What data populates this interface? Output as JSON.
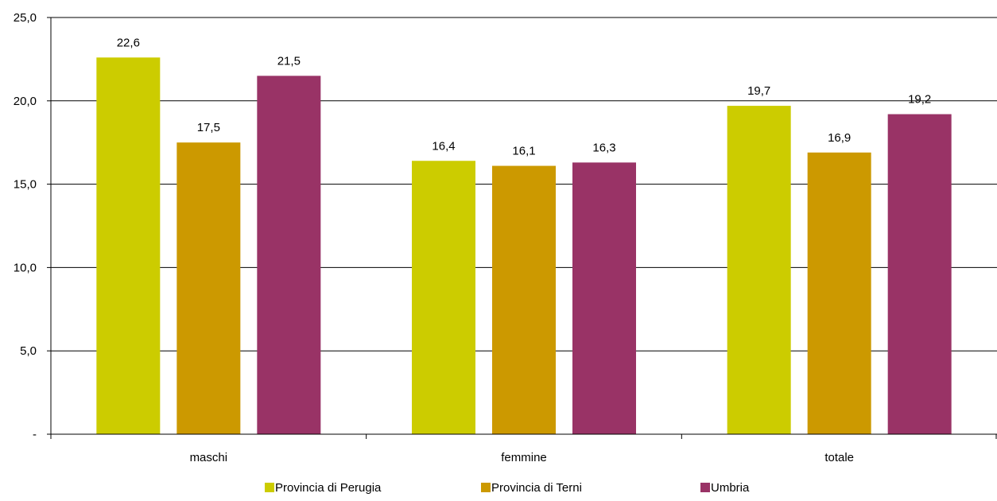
{
  "chart_data": {
    "type": "bar",
    "categories": [
      "maschi",
      "femmine",
      "totale"
    ],
    "series": [
      {
        "name": "Provincia di Perugia",
        "color": "#cccc00",
        "values": [
          22.6,
          16.4,
          19.7
        ],
        "labels": [
          "22,6",
          "16,4",
          "19,7"
        ]
      },
      {
        "name": "Provincia di Terni",
        "color": "#cc9900",
        "values": [
          17.5,
          16.1,
          16.9
        ],
        "labels": [
          "17,5",
          "16,1",
          "16,9"
        ]
      },
      {
        "name": "Umbria",
        "color": "#993366",
        "values": [
          21.5,
          16.3,
          19.2
        ],
        "labels": [
          "21,5",
          "16,3",
          "19,2"
        ]
      }
    ],
    "ylim": [
      0,
      25
    ],
    "yticks": [
      0,
      5,
      10,
      15,
      20,
      25
    ],
    "ytick_labels": [
      "-",
      "5,0",
      "10,0",
      "15,0",
      "20,0",
      "25,0"
    ],
    "grid": true,
    "legend_position": "bottom"
  }
}
